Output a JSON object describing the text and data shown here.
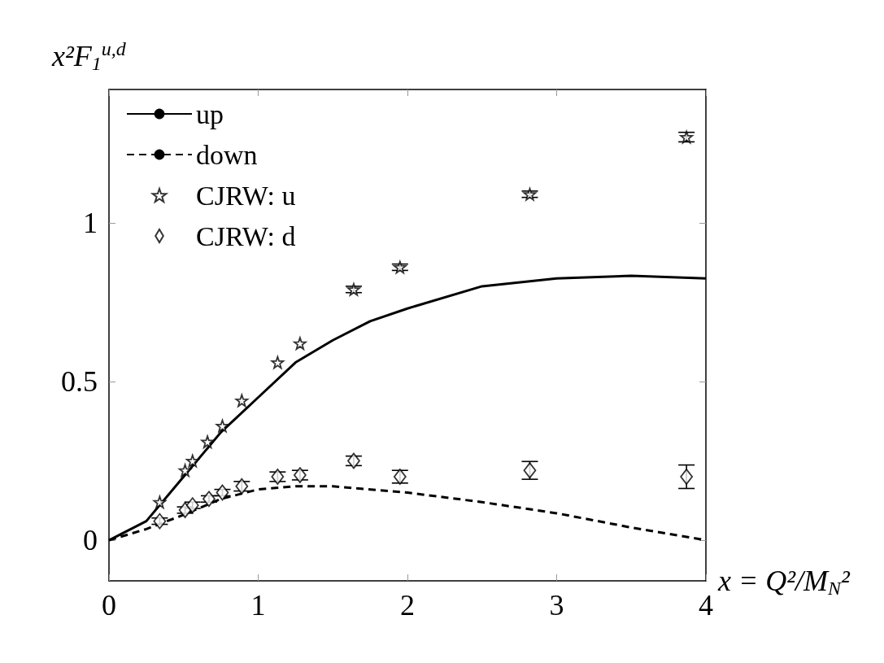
{
  "chart_data": {
    "type": "line",
    "xlabel": "x = Q²/M$_{N}$²",
    "ylabel": "x²F$_{1}$$^{u,d}$",
    "xlim": [
      0,
      4
    ],
    "xticks": [
      0,
      1,
      2,
      3,
      4
    ],
    "ylim": [
      -0.128,
      1.42
    ],
    "yticks": [
      0,
      0.5,
      1
    ],
    "grid": false,
    "legend": "top left",
    "series": [
      {
        "name": "up",
        "color": "#000000",
        "line_style": "solid",
        "marker": "none",
        "x": [
          0,
          0.25,
          0.5,
          0.75,
          1,
          1.25,
          1.5,
          1.75,
          2,
          2.5,
          3,
          3.5,
          4
        ],
        "values": [
          0,
          0.06,
          0.2,
          0.34,
          0.45,
          0.56,
          0.63,
          0.69,
          0.73,
          0.8,
          0.825,
          0.833,
          0.825
        ]
      },
      {
        "name": "down",
        "color": "#000000",
        "line_style": "dashed",
        "marker": "none",
        "x": [
          0,
          0.25,
          0.5,
          0.75,
          1,
          1.25,
          1.5,
          2,
          2.5,
          3,
          3.5,
          4
        ],
        "values": [
          0,
          0.035,
          0.08,
          0.13,
          0.16,
          0.17,
          0.17,
          0.15,
          0.12,
          0.085,
          0.04,
          0
        ]
      },
      {
        "name": "CJRW: u",
        "type": "scatter",
        "color": "#000000",
        "marker": "star",
        "x": [
          0.34,
          0.51,
          0.56,
          0.66,
          0.76,
          0.89,
          1.13,
          1.28,
          1.64,
          1.95,
          2.82,
          3.87
        ],
        "values": [
          0.12,
          0.22,
          0.25,
          0.31,
          0.36,
          0.44,
          0.56,
          0.62,
          0.79,
          0.86,
          1.09,
          1.27
        ],
        "errors": [
          null,
          null,
          null,
          null,
          null,
          null,
          null,
          null,
          0.01,
          0.01,
          0.01,
          0.015
        ]
      },
      {
        "name": "CJRW: d",
        "type": "scatter",
        "color": "#000000",
        "marker": "diamond",
        "x": [
          0.34,
          0.51,
          0.56,
          0.67,
          0.76,
          0.89,
          1.13,
          1.28,
          1.64,
          1.95,
          2.82,
          3.87
        ],
        "values": [
          0.06,
          0.095,
          0.11,
          0.13,
          0.15,
          0.17,
          0.2,
          0.205,
          0.25,
          0.2,
          0.22,
          0.2
        ],
        "errors": [
          0.01,
          0.01,
          0.01,
          0.01,
          0.01,
          0.015,
          0.015,
          0.015,
          0.015,
          0.02,
          0.028,
          0.037
        ]
      }
    ]
  }
}
